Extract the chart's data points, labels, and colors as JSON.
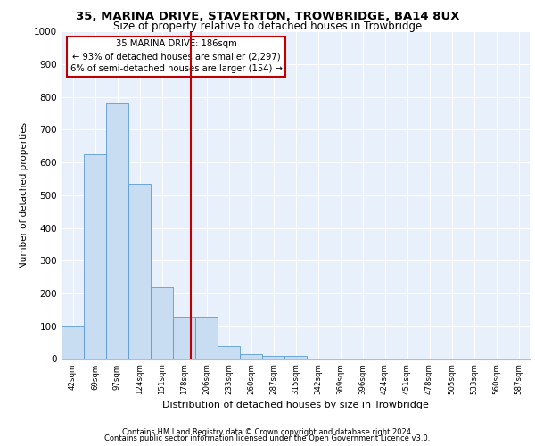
{
  "title1": "35, MARINA DRIVE, STAVERTON, TROWBRIDGE, BA14 8UX",
  "title2": "Size of property relative to detached houses in Trowbridge",
  "xlabel": "Distribution of detached houses by size in Trowbridge",
  "ylabel": "Number of detached properties",
  "bar_labels": [
    "42sqm",
    "69sqm",
    "97sqm",
    "124sqm",
    "151sqm",
    "178sqm",
    "206sqm",
    "233sqm",
    "260sqm",
    "287sqm",
    "315sqm",
    "342sqm",
    "369sqm",
    "396sqm",
    "424sqm",
    "451sqm",
    "478sqm",
    "505sqm",
    "533sqm",
    "560sqm",
    "587sqm"
  ],
  "bar_values": [
    100,
    625,
    780,
    535,
    220,
    130,
    130,
    40,
    15,
    10,
    10,
    0,
    0,
    0,
    0,
    0,
    0,
    0,
    0,
    0,
    0
  ],
  "bar_color": "#c9ddf2",
  "bar_edge_color": "#5b9bd5",
  "vline_color": "#c00000",
  "annotation_text": "35 MARINA DRIVE: 186sqm\n← 93% of detached houses are smaller (2,297)\n6% of semi-detached houses are larger (154) →",
  "annotation_box_color": "#c00000",
  "ylim": [
    0,
    1000
  ],
  "yticks": [
    0,
    100,
    200,
    300,
    400,
    500,
    600,
    700,
    800,
    900,
    1000
  ],
  "footer1": "Contains HM Land Registry data © Crown copyright and database right 2024.",
  "footer2": "Contains public sector information licensed under the Open Government Licence v3.0.",
  "plot_bg_color": "#e8f0fb"
}
